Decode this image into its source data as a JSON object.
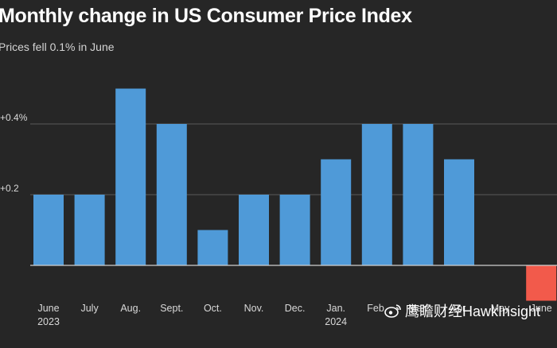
{
  "title": "Monthly change in US Consumer Price Index",
  "subtitle": "Prices fell 0.1% in June",
  "watermark": "鹰瞻财经HawkInsight",
  "colors": {
    "background": "#262626",
    "positive_bar": "#4f9ad8",
    "negative_bar": "#f25a4b",
    "gridline": "#5a5a5a",
    "baseline": "#cfcfcf",
    "tick_text": "#d9d9d9"
  },
  "chart_data": {
    "type": "bar",
    "title": "Monthly change in US Consumer Price Index",
    "subtitle": "Prices fell 0.1% in June",
    "categories": [
      "June",
      "July",
      "Aug.",
      "Sept.",
      "Oct.",
      "Nov.",
      "Dec.",
      "Jan.",
      "Feb.",
      "Mar.",
      "Apr.",
      "May",
      "June"
    ],
    "year_labels": [
      "2023",
      "",
      "",
      "",
      "",
      "",
      "",
      "2024",
      "",
      "",
      "",
      "",
      ""
    ],
    "values": [
      0.2,
      0.2,
      0.5,
      0.4,
      0.1,
      0.2,
      0.2,
      0.3,
      0.4,
      0.4,
      0.3,
      0.0,
      -0.1
    ],
    "yticks": [
      {
        "value": 0.2,
        "label": "+0.2"
      },
      {
        "value": 0.4,
        "label": "+0.4%"
      }
    ],
    "ylim": [
      -0.1,
      0.6
    ],
    "grid": true,
    "xlabel": "",
    "ylabel": ""
  }
}
